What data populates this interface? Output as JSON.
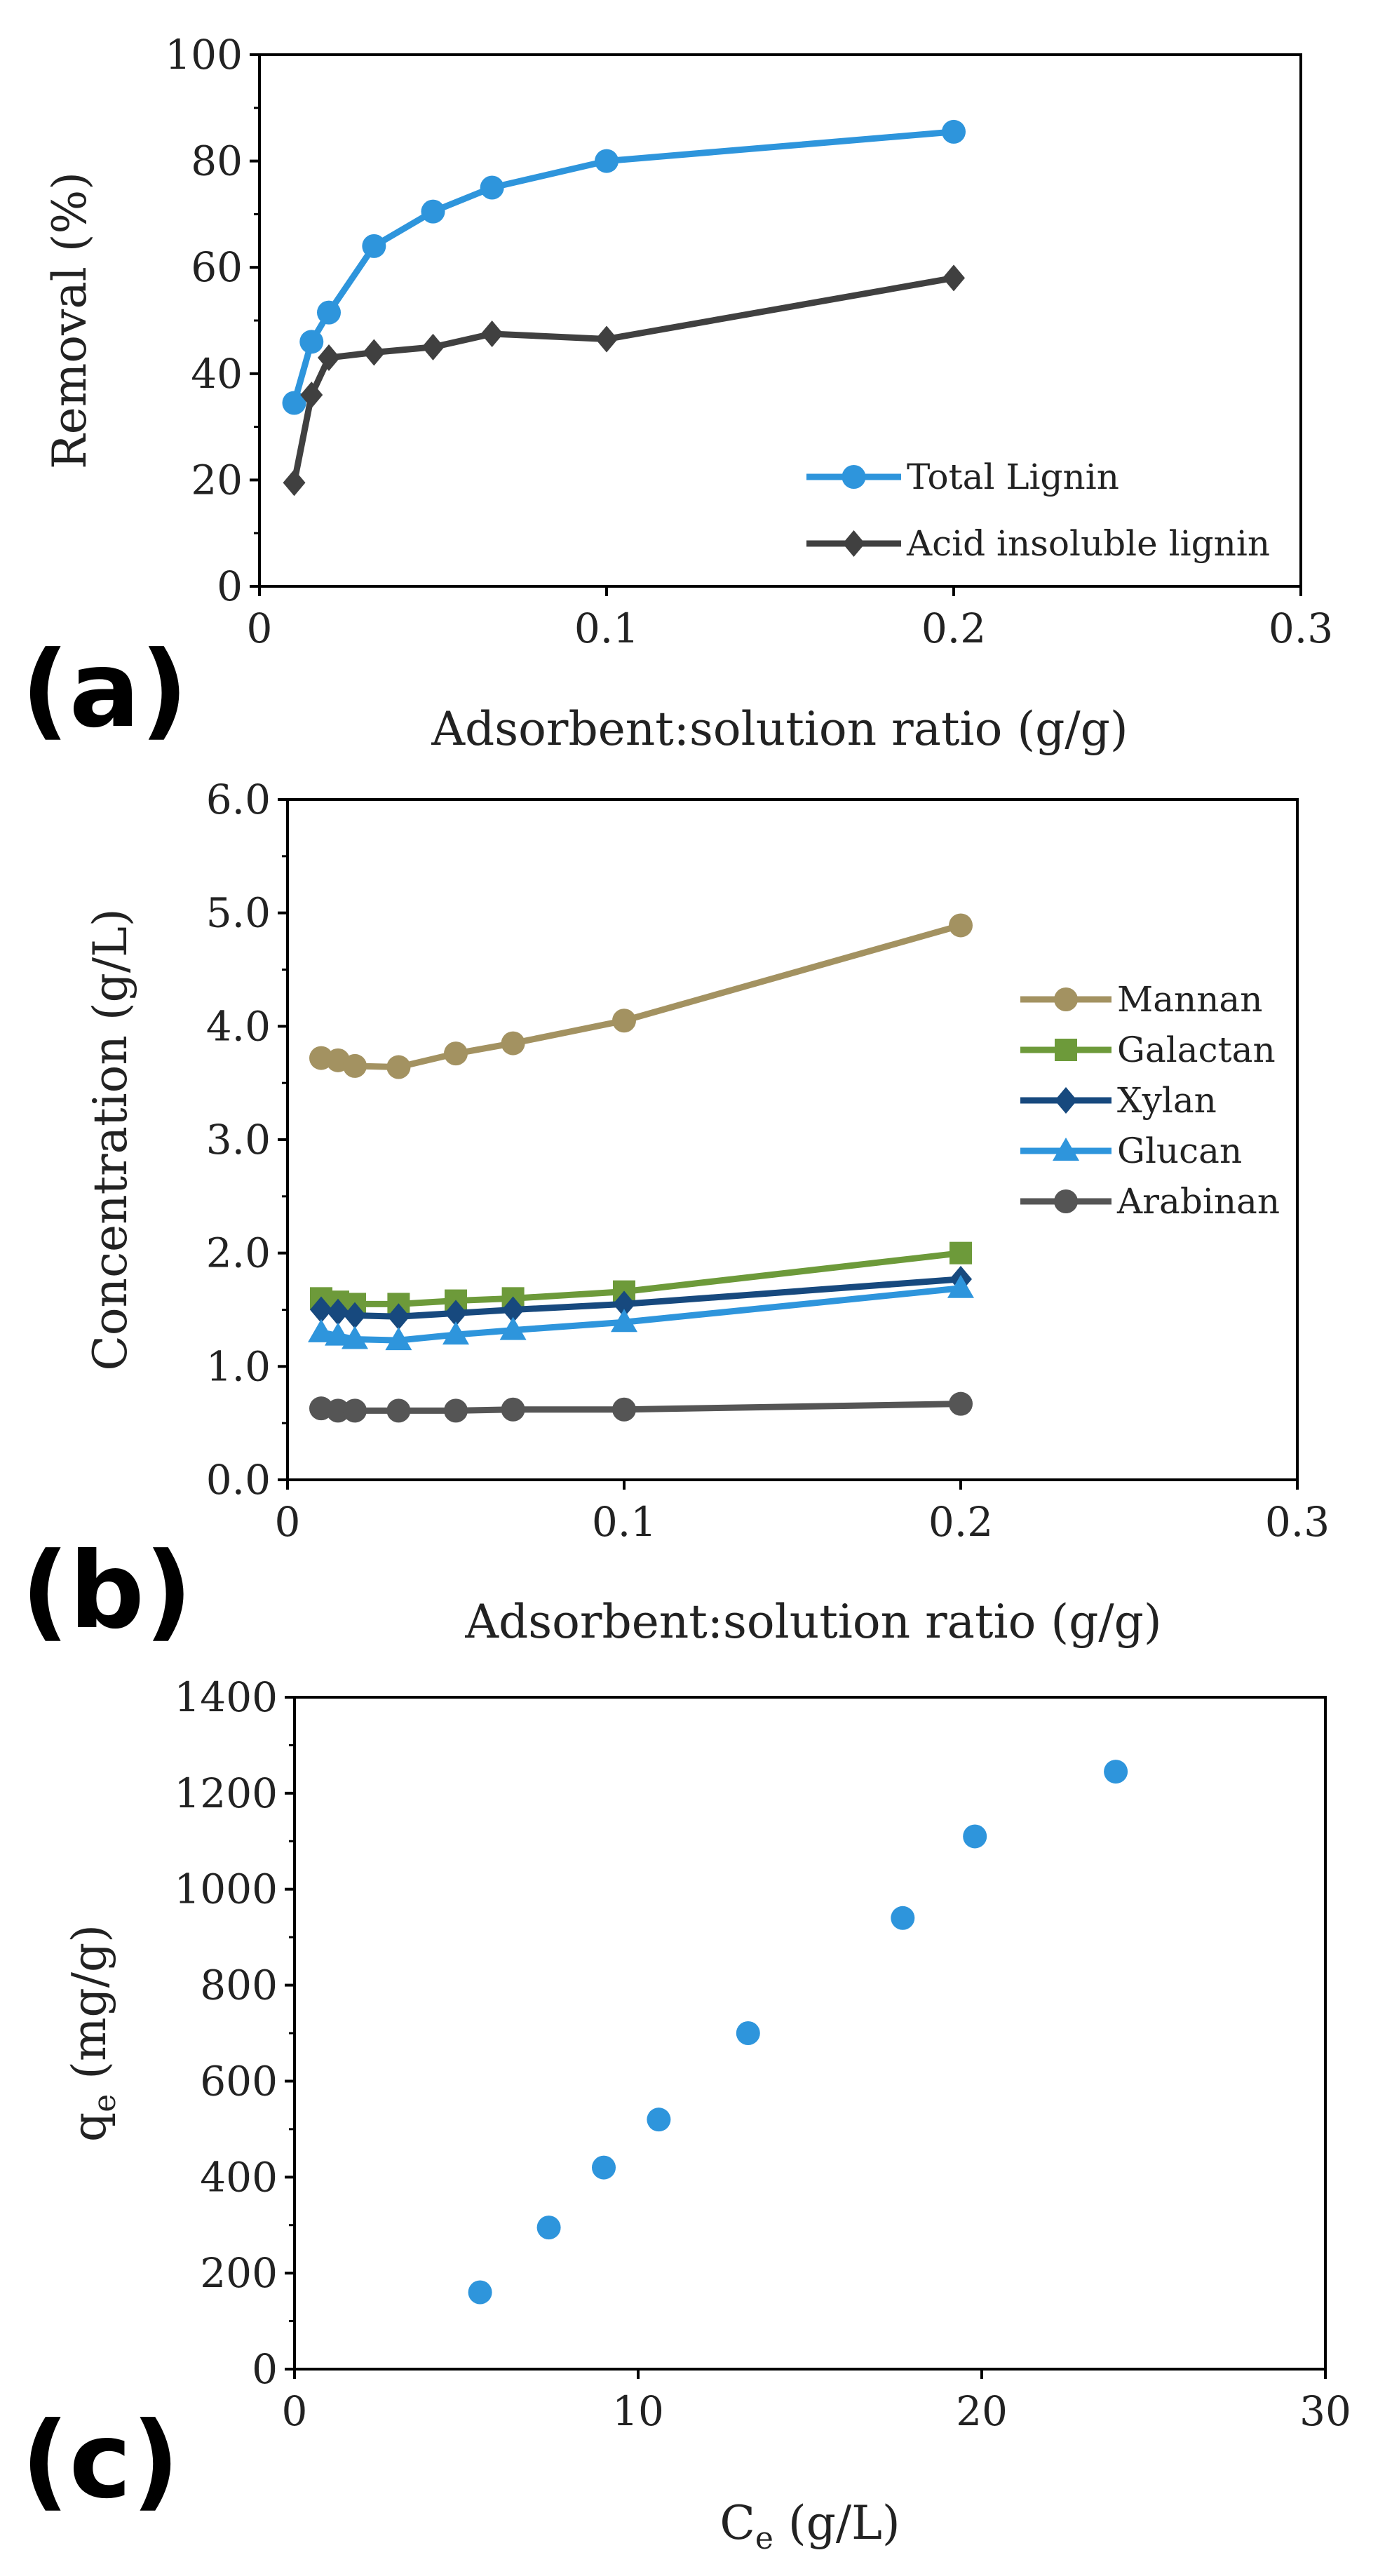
{
  "chart_data": [
    {
      "panel_label": "(a)",
      "type": "line",
      "xlabel": "Adsorbent:solution ratio (g/g)",
      "ylabel": "Removal (%)",
      "xlim": [
        0,
        0.3
      ],
      "ylim": [
        0,
        100
      ],
      "xticks": [
        "0",
        "0.1",
        "0.2",
        "0.3"
      ],
      "yticks": [
        "0",
        "20",
        "40",
        "60",
        "80",
        "100"
      ],
      "legend_position": "bottom-right",
      "series": [
        {
          "name": "Total Lignin",
          "marker": "circle",
          "color": "#2E95DC",
          "x": [
            0.01,
            0.015,
            0.02,
            0.033,
            0.05,
            0.067,
            0.1,
            0.2
          ],
          "y": [
            34.5,
            46,
            51.5,
            64,
            70.5,
            75,
            80,
            85.5
          ]
        },
        {
          "name": "Acid insoluble lignin",
          "marker": "diamond",
          "color": "#404040",
          "x": [
            0.01,
            0.015,
            0.02,
            0.033,
            0.05,
            0.067,
            0.1,
            0.2
          ],
          "y": [
            19.5,
            36,
            43,
            44,
            45,
            47.5,
            46.5,
            58
          ]
        }
      ]
    },
    {
      "panel_label": "(b)",
      "type": "line",
      "xlabel": "Adsorbent:solution ratio (g/g)",
      "ylabel": "Concentration (g/L)",
      "xlim": [
        0,
        0.3
      ],
      "ylim": [
        0,
        6
      ],
      "xticks": [
        "0",
        "0.1",
        "0.2",
        "0.3"
      ],
      "yticks": [
        "0.0",
        "1.0",
        "2.0",
        "3.0",
        "4.0",
        "5.0",
        "6.0"
      ],
      "legend_position": "right",
      "series": [
        {
          "name": "Mannan",
          "marker": "circle",
          "color": "#A39261",
          "x": [
            0.01,
            0.015,
            0.02,
            0.033,
            0.05,
            0.067,
            0.1,
            0.2
          ],
          "y": [
            3.72,
            3.7,
            3.65,
            3.64,
            3.76,
            3.85,
            4.05,
            4.89
          ]
        },
        {
          "name": "Galactan",
          "marker": "square",
          "color": "#6D9A3A",
          "x": [
            0.01,
            0.015,
            0.02,
            0.033,
            0.05,
            0.067,
            0.1,
            0.2
          ],
          "y": [
            1.6,
            1.57,
            1.55,
            1.55,
            1.58,
            1.6,
            1.66,
            2.0
          ]
        },
        {
          "name": "Xylan",
          "marker": "diamond",
          "color": "#17497E",
          "x": [
            0.01,
            0.015,
            0.02,
            0.033,
            0.05,
            0.067,
            0.1,
            0.2
          ],
          "y": [
            1.5,
            1.48,
            1.45,
            1.44,
            1.47,
            1.5,
            1.55,
            1.77
          ]
        },
        {
          "name": "Glucan",
          "marker": "triangle",
          "color": "#2E95DC",
          "x": [
            0.01,
            0.015,
            0.02,
            0.033,
            0.05,
            0.067,
            0.1,
            0.2
          ],
          "y": [
            1.3,
            1.27,
            1.24,
            1.23,
            1.28,
            1.32,
            1.39,
            1.69
          ]
        },
        {
          "name": "Arabinan",
          "marker": "circle",
          "color": "#555555",
          "x": [
            0.01,
            0.015,
            0.02,
            0.033,
            0.05,
            0.067,
            0.1,
            0.2
          ],
          "y": [
            0.63,
            0.61,
            0.61,
            0.61,
            0.61,
            0.62,
            0.62,
            0.67
          ]
        }
      ]
    },
    {
      "panel_label": "(c)",
      "type": "scatter",
      "xlabel_main": "C",
      "xlabel_sub": "e",
      "xlabel_unit": " (g/L)",
      "ylabel_main": "q",
      "ylabel_sub": "e",
      "ylabel_unit": " (mg/g)",
      "xlim": [
        0,
        30
      ],
      "ylim": [
        0,
        1400
      ],
      "xticks": [
        "0",
        "10",
        "20",
        "30"
      ],
      "yticks": [
        "0",
        "200",
        "400",
        "600",
        "800",
        "1000",
        "1200",
        "1400"
      ],
      "series": [
        {
          "name": "qe",
          "marker": "circle",
          "color": "#2E95DC",
          "x": [
            5.4,
            7.4,
            9.0,
            10.6,
            13.2,
            17.7,
            19.8,
            23.9
          ],
          "y": [
            160,
            295,
            420,
            520,
            700,
            940,
            1110,
            1245
          ]
        }
      ]
    }
  ]
}
